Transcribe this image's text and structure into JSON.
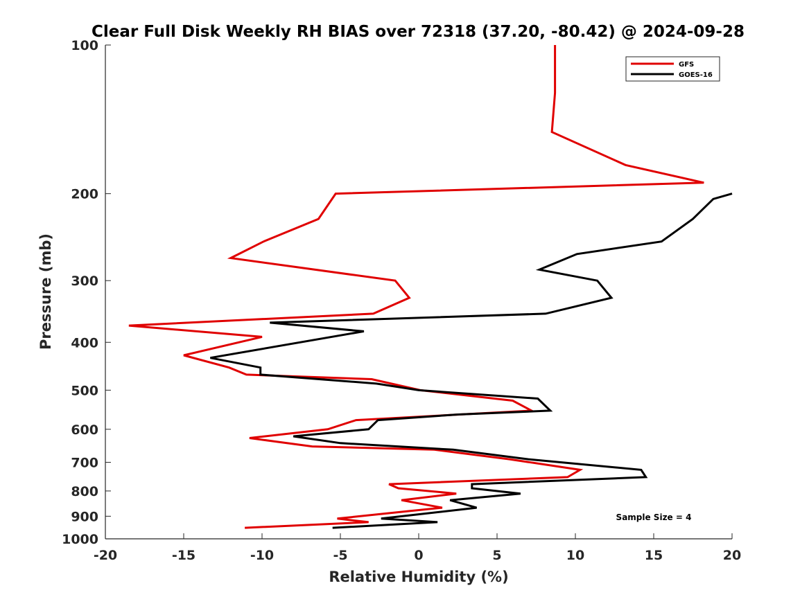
{
  "chart_data": {
    "type": "line",
    "title": "Clear Full Disk Weekly RH BIAS over 72318 (37.20, -80.42) @ 2024-09-28",
    "xlabel": "Relative Humidity (%)",
    "ylabel": "Pressure (mb)",
    "xlim": [
      -20,
      20
    ],
    "ylim": [
      100,
      1000
    ],
    "y_scale": "log",
    "y_reversed": true,
    "xticks": [
      -20,
      -15,
      -10,
      -5,
      0,
      5,
      10,
      15,
      20
    ],
    "yticks": [
      100,
      200,
      300,
      400,
      500,
      600,
      700,
      800,
      900,
      1000
    ],
    "grid": false,
    "legend_position": "top-right",
    "annotation": "Sample Size = 4",
    "series": [
      {
        "name": "GFS",
        "color": "#e00000",
        "points": [
          [
            8.7,
            100
          ],
          [
            8.7,
            125
          ],
          [
            8.5,
            150
          ],
          [
            13.2,
            175
          ],
          [
            18.2,
            190
          ],
          [
            -5.3,
            200
          ],
          [
            -6.4,
            225
          ],
          [
            -9.9,
            250
          ],
          [
            -12.0,
            270
          ],
          [
            -1.5,
            300
          ],
          [
            -0.6,
            325
          ],
          [
            -2.9,
            350
          ],
          [
            -18.5,
            370
          ],
          [
            -10.0,
            390
          ],
          [
            -15.0,
            425
          ],
          [
            -12.1,
            450
          ],
          [
            -11.0,
            465
          ],
          [
            -3.0,
            475
          ],
          [
            0.1,
            500
          ],
          [
            6.0,
            525
          ],
          [
            7.2,
            550
          ],
          [
            -4.0,
            575
          ],
          [
            -5.8,
            600
          ],
          [
            -10.8,
            625
          ],
          [
            -6.8,
            650
          ],
          [
            1.0,
            660
          ],
          [
            5.8,
            690
          ],
          [
            10.3,
            725
          ],
          [
            9.5,
            750
          ],
          [
            -1.9,
            775
          ],
          [
            -1.3,
            790
          ],
          [
            2.4,
            810
          ],
          [
            -1.1,
            835
          ],
          [
            1.5,
            865
          ],
          [
            -0.8,
            880
          ],
          [
            -5.2,
            910
          ],
          [
            -3.2,
            925
          ],
          [
            -11.1,
            950
          ]
        ]
      },
      {
        "name": "GOES-16",
        "color": "#000000",
        "points": [
          [
            20.0,
            200
          ],
          [
            18.8,
            205
          ],
          [
            17.5,
            225
          ],
          [
            15.5,
            250
          ],
          [
            10.1,
            265
          ],
          [
            7.7,
            285
          ],
          [
            11.4,
            300
          ],
          [
            12.3,
            325
          ],
          [
            8.1,
            350
          ],
          [
            -9.5,
            365
          ],
          [
            -3.5,
            380
          ],
          [
            -13.3,
            430
          ],
          [
            -10.1,
            450
          ],
          [
            -10.1,
            465
          ],
          [
            -2.7,
            485
          ],
          [
            0.0,
            500
          ],
          [
            7.6,
            520
          ],
          [
            8.4,
            550
          ],
          [
            2.5,
            560
          ],
          [
            -2.6,
            575
          ],
          [
            -3.2,
            600
          ],
          [
            -8.0,
            620
          ],
          [
            -5.0,
            640
          ],
          [
            2.2,
            660
          ],
          [
            7.0,
            690
          ],
          [
            14.2,
            725
          ],
          [
            14.5,
            750
          ],
          [
            3.4,
            775
          ],
          [
            3.4,
            790
          ],
          [
            6.5,
            810
          ],
          [
            2.0,
            835
          ],
          [
            3.7,
            865
          ],
          [
            -2.4,
            910
          ],
          [
            1.2,
            925
          ],
          [
            -5.5,
            950
          ]
        ]
      }
    ]
  }
}
